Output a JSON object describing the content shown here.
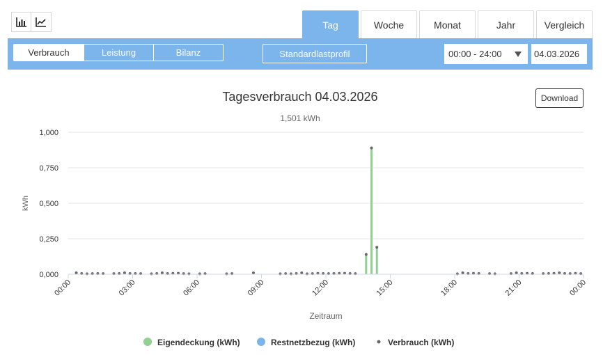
{
  "view_toggle": {
    "bar_icon": "bar-chart-icon",
    "line_icon": "line-chart-icon"
  },
  "tabs": [
    {
      "label": "Tag",
      "active": true
    },
    {
      "label": "Woche",
      "active": false
    },
    {
      "label": "Monat",
      "active": false
    },
    {
      "label": "Jahr",
      "active": false
    },
    {
      "label": "Vergleich",
      "active": false
    }
  ],
  "toolbar": {
    "segments": [
      {
        "label": "Verbrauch",
        "active": true
      },
      {
        "label": "Leistung",
        "active": false
      },
      {
        "label": "Bilanz",
        "active": false
      }
    ],
    "standard_profile_label": "Standardlastprofil",
    "time_range": "00:00 - 24:00",
    "date": "04.03.2026"
  },
  "download_label": "Download",
  "colors": {
    "accent": "#7cb5ec",
    "eigendeckung": "#90d091",
    "restnetzbezug": "#7cb5ec",
    "verbrauch": "#666666"
  },
  "chart_data": {
    "type": "bar",
    "title": "Tagesverbrauch 04.03.2026",
    "subtitle": "1,501 kWh",
    "xlabel": "Zeitraum",
    "ylabel": "kWh",
    "ylim": [
      0,
      1.0
    ],
    "yticks": [
      "0,000",
      "0,250",
      "0,500",
      "0,750",
      "1,000"
    ],
    "xticks": [
      "00:00",
      "03:00",
      "06:00",
      "09:00",
      "12:00",
      "15:00",
      "18:00",
      "21:00",
      "00:00"
    ],
    "grid": true,
    "legend_position": "bottom",
    "interval_minutes": 15,
    "series": [
      {
        "name": "Eigendeckung (kWh)",
        "kind": "bar",
        "values": {
          "55": 0.14,
          "56": 0.89,
          "57": 0.19
        }
      },
      {
        "name": "Restnetzbezug (kWh)",
        "kind": "bar",
        "values": {}
      },
      {
        "name": "Verbrauch (kWh)",
        "kind": "scatter",
        "values": {
          "1": 0.01,
          "2": 0.005,
          "3": 0.003,
          "4": 0.004,
          "5": 0.005,
          "6": 0.004,
          "8": 0.004,
          "9": 0.005,
          "10": 0.01,
          "11": 0.005,
          "12": 0.005,
          "13": 0.004,
          "15": 0.003,
          "16": 0.005,
          "17": 0.01,
          "18": 0.005,
          "19": 0.006,
          "20": 0.007,
          "21": 0.004,
          "22": 0.003,
          "24": 0.003,
          "25": 0.004,
          "29": 0.003,
          "30": 0.004,
          "34": 0.01,
          "39": 0.003,
          "40": 0.004,
          "41": 0.003,
          "42": 0.005,
          "43": 0.01,
          "44": 0.003,
          "45": 0.004,
          "46": 0.006,
          "47": 0.005,
          "48": 0.004,
          "49": 0.005,
          "50": 0.006,
          "51": 0.007,
          "52": 0.005,
          "53": 0.004,
          "55": 0.14,
          "56": 0.89,
          "57": 0.19,
          "72": 0.003,
          "73": 0.01,
          "74": 0.005,
          "75": 0.006,
          "76": 0.005,
          "78": 0.004,
          "79": 0.003,
          "82": 0.004,
          "83": 0.01,
          "84": 0.005,
          "85": 0.006,
          "86": 0.005,
          "88": 0.004,
          "89": 0.005,
          "90": 0.006,
          "91": 0.01,
          "92": 0.005,
          "93": 0.004,
          "94": 0.006,
          "95": 0.004
        }
      }
    ]
  }
}
